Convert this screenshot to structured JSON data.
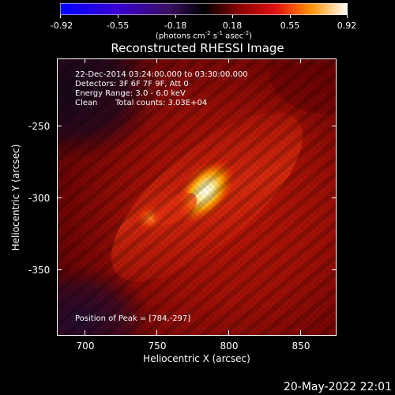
{
  "colorbar": {
    "ticks": [
      "-0.92",
      "-0.55",
      "-0.18",
      "0.18",
      "0.55",
      "0.92"
    ],
    "units_text": "(photons cm",
    "units_exp1": "-2",
    "units_mid": " s",
    "units_exp2": "-1",
    "units_end": " asec",
    "units_exp3": "-2",
    "units_close": ")"
  },
  "title": "Reconstructed RHESSI Image",
  "info": {
    "time_range": "22-Dec-2014 03:24:00.000 to 03:30:00.000",
    "detectors": "Detectors: 3F 6F 7F 9F, Att 0",
    "energy": "Energy Range: 3.0 - 6.0 keV",
    "algorithm": "Clean",
    "counts": "Total counts: 3.03E+04"
  },
  "peak_text": "Position of Peak = [784,-297]",
  "x_axis": {
    "label": "Heliocentric X (arcsec)",
    "ticks": [
      "700",
      "750",
      "800",
      "850"
    ]
  },
  "y_axis": {
    "label": "Heliocentric Y (arcsec)",
    "ticks": [
      "-250",
      "-300",
      "-350"
    ]
  },
  "timestamp": "20-May-2022 22:01"
}
